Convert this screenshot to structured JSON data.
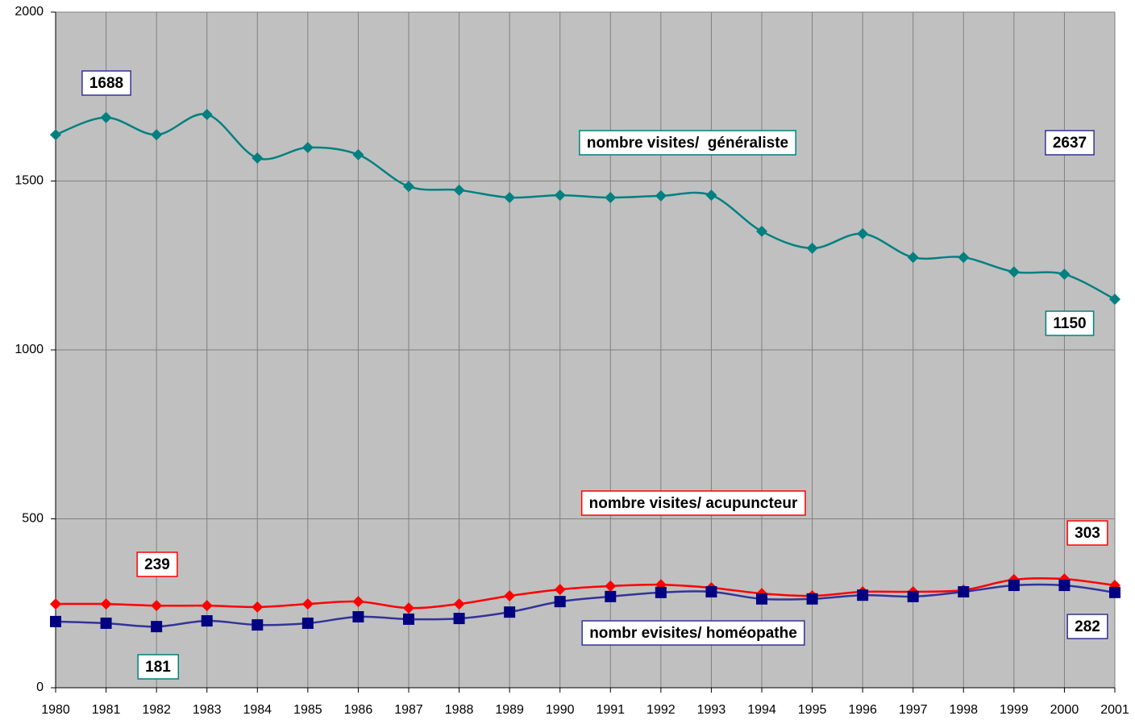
{
  "chart_data": {
    "type": "line",
    "x": [
      1980,
      1981,
      1982,
      1983,
      1984,
      1985,
      1986,
      1987,
      1988,
      1989,
      1990,
      1991,
      1992,
      1993,
      1994,
      1995,
      1996,
      1997,
      1998,
      1999,
      2000,
      2001
    ],
    "xlim": [
      1980,
      2001
    ],
    "xticks": [
      1980,
      1981,
      1982,
      1983,
      1984,
      1985,
      1986,
      1987,
      1988,
      1989,
      1990,
      1991,
      1992,
      1993,
      1994,
      1995,
      1996,
      1997,
      1998,
      1999,
      2000,
      2001
    ],
    "ylim": [
      0,
      2000
    ],
    "yticks": [
      0,
      500,
      1000,
      1500,
      2000
    ],
    "grid": true,
    "series": [
      {
        "name": "nombre visites/  généraliste",
        "color": "#008080",
        "marker": "diamond",
        "values": [
          1637,
          1688,
          1637,
          1697,
          1568,
          1599,
          1578,
          1484,
          1473,
          1451,
          1458,
          1451,
          1456,
          1458,
          1351,
          1301,
          1344,
          1274,
          1274,
          1231,
          1224,
          1150
        ]
      },
      {
        "name": "nombre visites/ acupuncteur",
        "color": "#ff0000",
        "marker": "diamond",
        "values": [
          248,
          248,
          243,
          243,
          239,
          248,
          255,
          236,
          248,
          272,
          291,
          301,
          305,
          296,
          279,
          272,
          284,
          284,
          289,
          320,
          322,
          303
        ]
      },
      {
        "name": "nombr evisites/ homéopathe",
        "color": "#333399",
        "marker": "square",
        "values": [
          196,
          191,
          181,
          198,
          186,
          191,
          210,
          203,
          205,
          224,
          255,
          270,
          282,
          284,
          263,
          263,
          274,
          270,
          284,
          303,
          303,
          282
        ]
      }
    ],
    "annotations": [
      {
        "text": "1688",
        "color": "#333399"
      },
      {
        "text": "2637",
        "color": "#333399"
      },
      {
        "text": "1150",
        "color": "#008080"
      },
      {
        "text": "239",
        "color": "#ff0000"
      },
      {
        "text": "303",
        "color": "#ff0000"
      },
      {
        "text": "181",
        "color": "#008080"
      },
      {
        "text": "282",
        "color": "#333399"
      }
    ]
  }
}
